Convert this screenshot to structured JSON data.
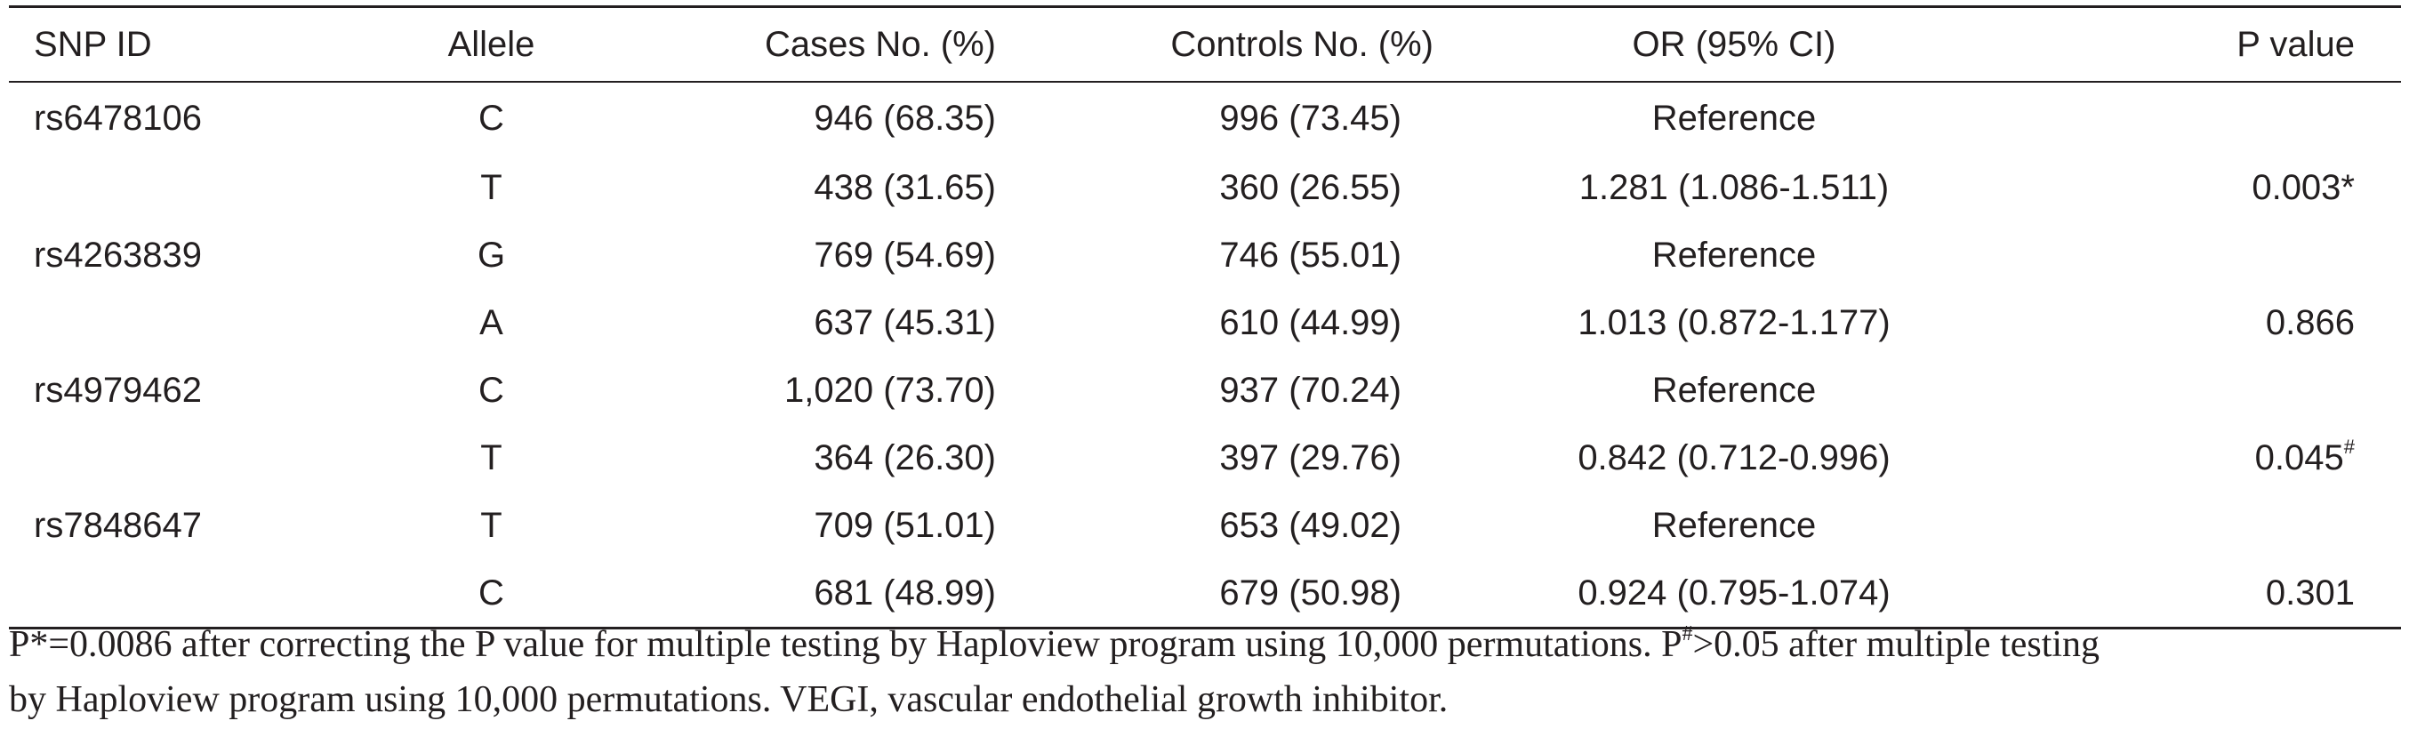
{
  "table": {
    "headers": {
      "snp_id": "SNP ID",
      "allele": "Allele",
      "cases": "Cases No. (%)",
      "controls": "Controls No. (%)",
      "or": "OR (95% CI)",
      "p": "P value"
    },
    "rows": [
      {
        "snp": "rs6478106",
        "allele": "C",
        "cases": "946 (68.35)",
        "controls": "996 (73.45)",
        "or": "Reference",
        "p": "",
        "p_mark": ""
      },
      {
        "snp": "",
        "allele": "T",
        "cases": "438 (31.65)",
        "controls": "360 (26.55)",
        "or": "1.281 (1.086-1.511)",
        "p": "0.003*",
        "p_mark": ""
      },
      {
        "snp": "rs4263839",
        "allele": "G",
        "cases": "769 (54.69)",
        "controls": "746 (55.01)",
        "or": "Reference",
        "p": "",
        "p_mark": ""
      },
      {
        "snp": "",
        "allele": "A",
        "cases": "637 (45.31)",
        "controls": "610 (44.99)",
        "or": "1.013 (0.872-1.177)",
        "p": "0.866",
        "p_mark": ""
      },
      {
        "snp": "rs4979462",
        "allele": "C",
        "cases": "1,020 (73.70)",
        "controls": "937 (70.24)",
        "or": "Reference",
        "p": "",
        "p_mark": ""
      },
      {
        "snp": "",
        "allele": "T",
        "cases": "364 (26.30)",
        "controls": "397 (29.76)",
        "or": "0.842 (0.712-0.996)",
        "p": "0.045",
        "p_mark": "#"
      },
      {
        "snp": "rs7848647",
        "allele": "T",
        "cases": "709 (51.01)",
        "controls": "653 (49.02)",
        "or": "Reference",
        "p": "",
        "p_mark": ""
      },
      {
        "snp": "",
        "allele": "C",
        "cases": "681 (48.99)",
        "controls": "679 (50.98)",
        "or": "0.924 (0.795-1.074)",
        "p": "0.301",
        "p_mark": ""
      }
    ]
  },
  "footnote": {
    "p1_prefix": "P*=0.0086 after correcting the P value for multiple testing by Haploview program using 10,000 permutations. P",
    "p2_mark": "#",
    "p2_text": ">0.05 after multiple testing",
    "line2": "by Haploview program using 10,000 permutations. VEGI, vascular endothelial growth inhibitor."
  }
}
